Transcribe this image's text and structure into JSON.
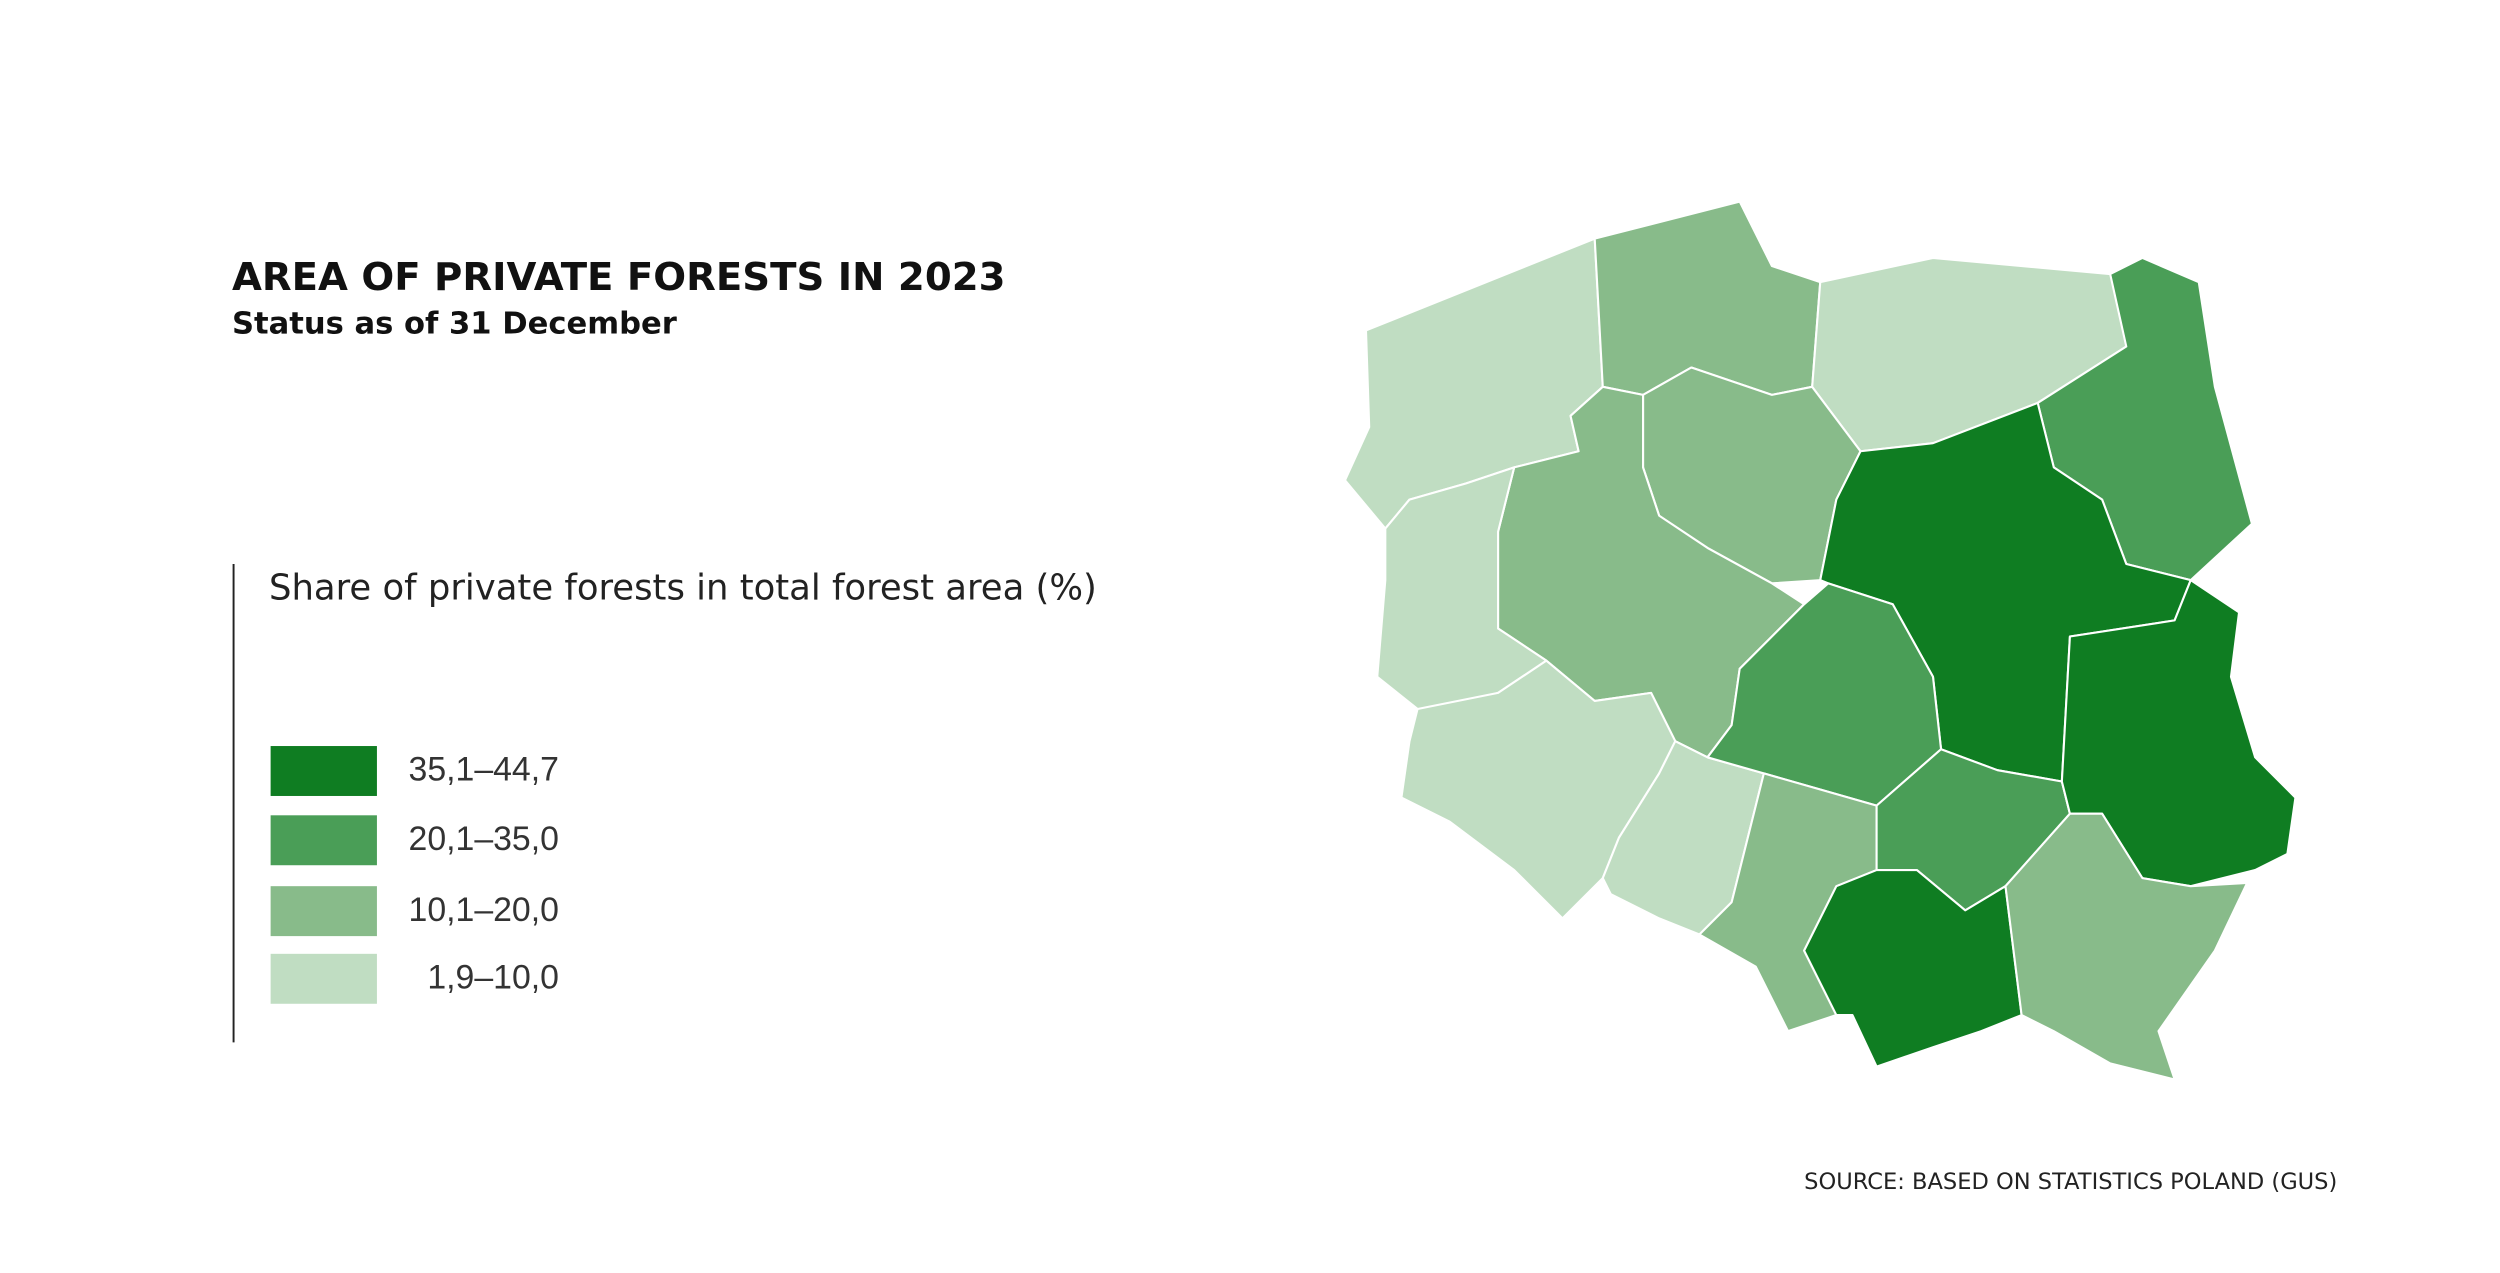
{
  "title": "AREA OF PRIVATE FORESTS IN 2023",
  "subtitle": "Status as of 31 December",
  "legend": {
    "title": "Share of private forests in total forest area (%)",
    "classes": [
      {
        "label": "35,1–44,7",
        "color": "#0f7d22"
      },
      {
        "label": "20,1–35,0",
        "color": "#4a9e57"
      },
      {
        "label": "10,1–20,0",
        "color": "#88bb8a"
      },
      {
        "label": "1,9–10,0",
        "color": "#c0ddc2"
      }
    ]
  },
  "source": "SOURCE: BASED ON STATISTICS POLAND (GUS)"
}
